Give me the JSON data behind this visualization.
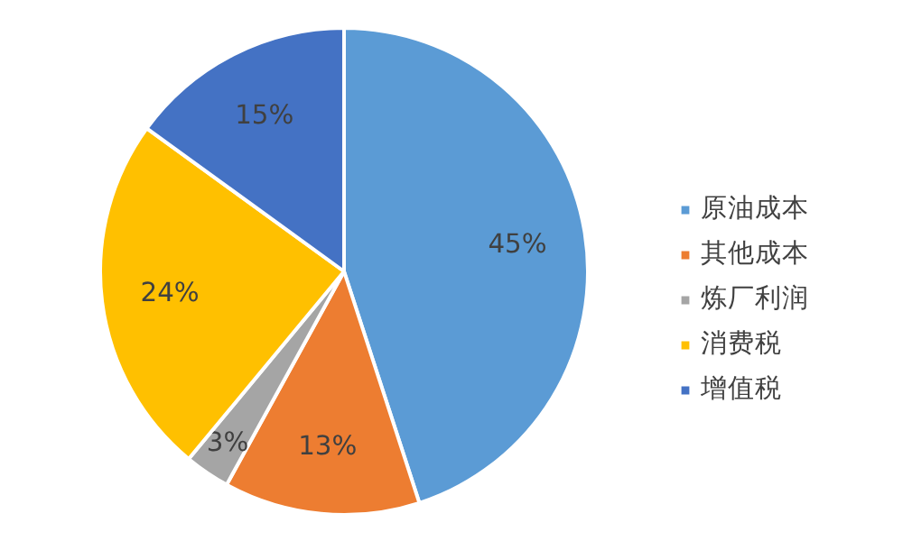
{
  "chart_data": {
    "type": "pie",
    "categories": [
      "原油成本",
      "其他成本",
      "炼厂利润",
      "消费税",
      "增值税"
    ],
    "values": [
      45,
      13,
      3,
      24,
      15
    ],
    "colors": [
      "#5b9bd5",
      "#ed7d31",
      "#a5a5a5",
      "#ffc000",
      "#4472c4"
    ],
    "value_labels": [
      "45%",
      "13%",
      "3%",
      "24%",
      "15%"
    ],
    "legend": "right"
  }
}
